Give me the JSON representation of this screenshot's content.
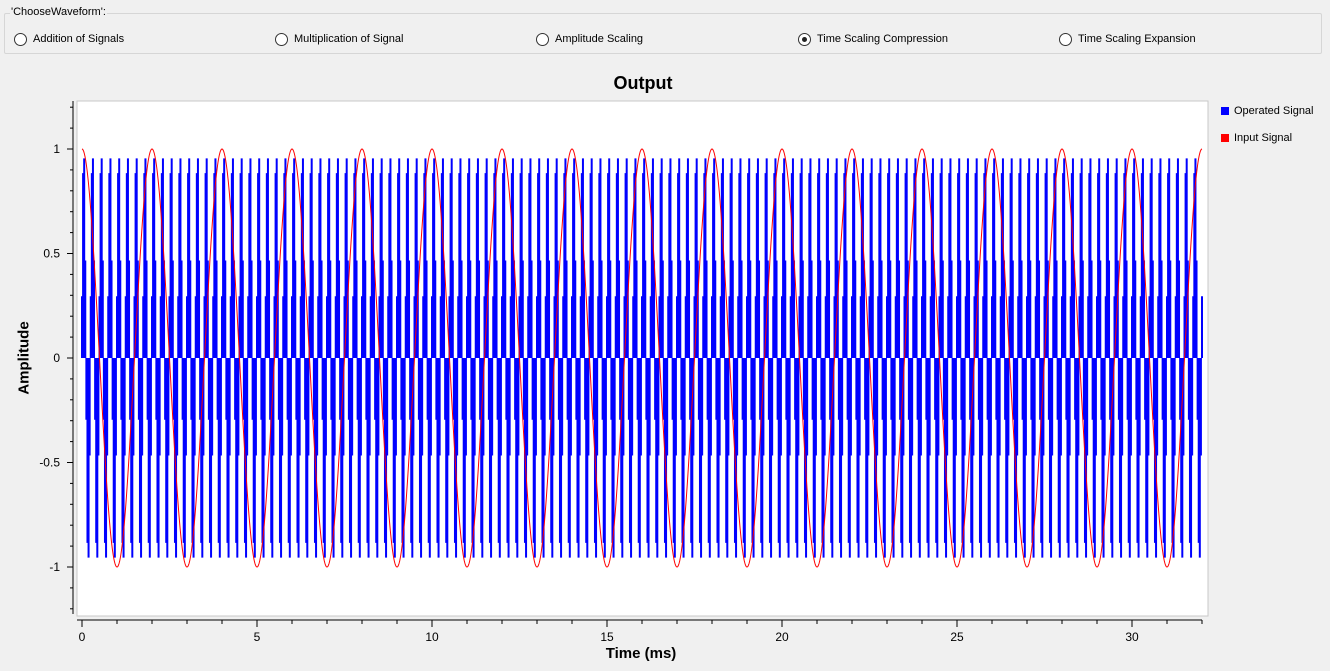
{
  "waveform_group": {
    "title": "'ChooseWaveform':",
    "options": [
      {
        "label": "Addition of Signals",
        "checked": false
      },
      {
        "label": "Multiplication of Signal",
        "checked": false
      },
      {
        "label": "Amplitude Scaling",
        "checked": false
      },
      {
        "label": "Time Scaling Compression",
        "checked": true
      },
      {
        "label": "Time Scaling Expansion",
        "checked": false
      }
    ]
  },
  "chart_data": {
    "type": "line",
    "title": "Output",
    "xlabel": "Time (ms)",
    "ylabel": "Amplitude",
    "xlim": [
      0,
      32
    ],
    "ylim": [
      -1.25,
      1.25
    ],
    "x_ticks": [
      "0",
      "5",
      "10",
      "15",
      "20",
      "25",
      "30"
    ],
    "y_ticks": [
      "1",
      "0.5",
      "0",
      "-0.5",
      "-1"
    ],
    "grid": false,
    "legend_position": "right",
    "series": [
      {
        "name": "Operated Signal",
        "color": "#0000ff",
        "shape": "sinusoid",
        "frequency_khz": 4,
        "samples_per_cycle": 8,
        "amplitude": 1,
        "render": "stem"
      },
      {
        "name": "Input Signal",
        "color": "#ff0000",
        "shape": "cosine",
        "frequency_khz": 0.5,
        "amplitude": 1,
        "render": "line"
      }
    ]
  }
}
